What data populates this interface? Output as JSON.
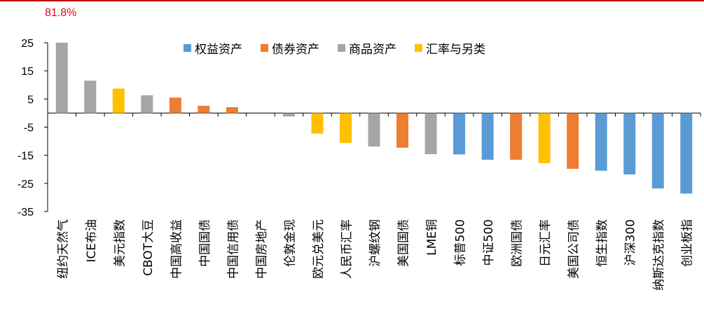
{
  "note": "81.8%",
  "chart_data": {
    "type": "bar",
    "ylim": [
      -35,
      25
    ],
    "yticks": [
      25,
      15,
      5,
      -5,
      -15,
      -25,
      -35
    ],
    "legend_position": "top",
    "legend": [
      {
        "name": "权益资产",
        "color": "#5b9bd5"
      },
      {
        "name": "债券资产",
        "color": "#ed7d31"
      },
      {
        "name": "商品资产",
        "color": "#a5a5a5"
      },
      {
        "name": "汇率与另类",
        "color": "#ffc000"
      }
    ],
    "categories": [
      "纽约天然气",
      "ICE布油",
      "美元指数",
      "CBOT大豆",
      "中国高收益",
      "中国国债",
      "中国信用债",
      "中国房地产",
      "伦敦金现",
      "欧元兑美元",
      "人民币汇率",
      "沪螺纹钢",
      "美国国债",
      "LME铜",
      "标普500",
      "中证500",
      "欧洲国债",
      "日元汇率",
      "美国公司债",
      "恒生指数",
      "沪深300",
      "纳斯达克指数",
      "创业板指"
    ],
    "values": [
      25,
      11.5,
      8.7,
      6.3,
      5.5,
      2.6,
      2.1,
      0,
      -1.2,
      -7.3,
      -10.6,
      -11.9,
      -12.3,
      -14.6,
      -14.7,
      -16.6,
      -16.6,
      -17.8,
      -19.8,
      -20.5,
      -21.8,
      -26.8,
      -28.6
    ],
    "groups": [
      "商品资产",
      "商品资产",
      "汇率与另类",
      "商品资产",
      "债券资产",
      "债券资产",
      "债券资产",
      "债券资产",
      "商品资产",
      "汇率与另类",
      "汇率与另类",
      "商品资产",
      "债券资产",
      "商品资产",
      "权益资产",
      "权益资产",
      "债券资产",
      "汇率与另类",
      "债券资产",
      "权益资产",
      "权益资产",
      "权益资产",
      "权益资产"
    ]
  }
}
